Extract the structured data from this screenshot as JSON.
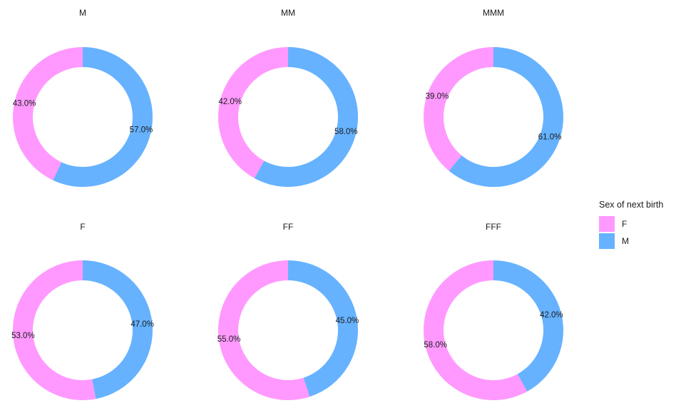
{
  "chart_data": {
    "type": "pie",
    "variant": "donut-facets",
    "legend": {
      "title": "Sex of next birth",
      "position": "right",
      "entries": [
        {
          "label": "F",
          "color": "#FF99FF"
        },
        {
          "label": "M",
          "color": "#66B2FF"
        }
      ]
    },
    "panels": [
      {
        "title": "M",
        "slices": [
          {
            "category": "M",
            "value": 57.0,
            "label": "57.0%"
          },
          {
            "category": "F",
            "value": 43.0,
            "label": "43.0%"
          }
        ]
      },
      {
        "title": "MM",
        "slices": [
          {
            "category": "M",
            "value": 58.0,
            "label": "58.0%"
          },
          {
            "category": "F",
            "value": 42.0,
            "label": "42.0%"
          }
        ]
      },
      {
        "title": "MMM",
        "slices": [
          {
            "category": "M",
            "value": 61.0,
            "label": "61.0%"
          },
          {
            "category": "F",
            "value": 39.0,
            "label": "39.0%"
          }
        ]
      },
      {
        "title": "F",
        "slices": [
          {
            "category": "M",
            "value": 47.0,
            "label": "47.0%"
          },
          {
            "category": "F",
            "value": 53.0,
            "label": "53.0%"
          }
        ]
      },
      {
        "title": "FF",
        "slices": [
          {
            "category": "M",
            "value": 45.0,
            "label": "45.0%"
          },
          {
            "category": "F",
            "value": 55.0,
            "label": "55.0%"
          }
        ]
      },
      {
        "title": "FFF",
        "slices": [
          {
            "category": "M",
            "value": 42.0,
            "label": "42.0%"
          },
          {
            "category": "F",
            "value": 58.0,
            "label": "58.0%"
          }
        ]
      }
    ]
  }
}
